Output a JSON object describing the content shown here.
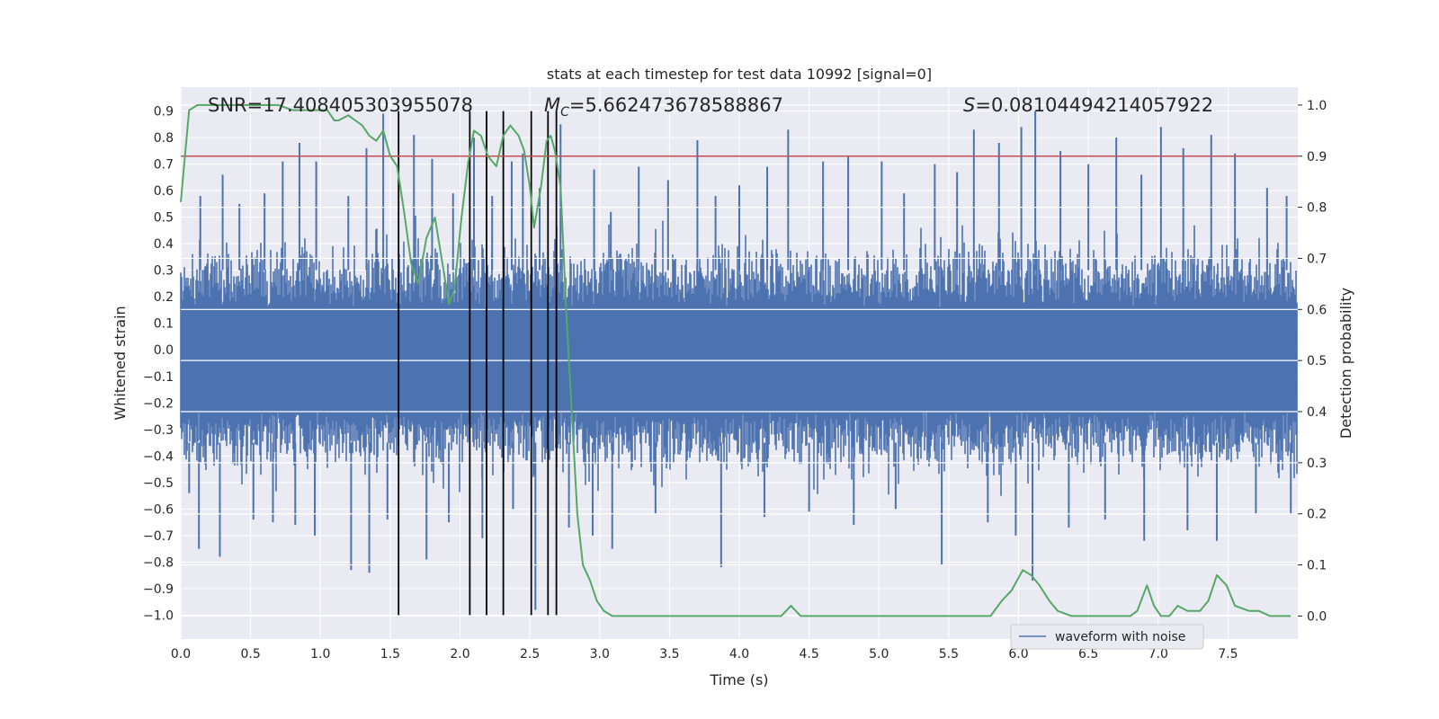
{
  "chart_data": {
    "type": "line",
    "title": "stats at each timestep for test data 10992 [signal=0]",
    "xlabel": "Time (s)",
    "ylabel_left": "Whitened strain",
    "ylabel_right": "Detection probability",
    "xlim": [
      0,
      8
    ],
    "ylim_left": [
      -1.09,
      0.99
    ],
    "ylim_right": [
      -0.045,
      1.035
    ],
    "x_ticks": [
      "0.0",
      "0.5",
      "1.0",
      "1.5",
      "2.0",
      "2.5",
      "3.0",
      "3.5",
      "4.0",
      "4.5",
      "5.0",
      "5.5",
      "6.0",
      "6.5",
      "7.0",
      "7.5"
    ],
    "y_ticks_left": [
      "−1.0",
      "−0.9",
      "−0.8",
      "−0.7",
      "−0.6",
      "−0.5",
      "−0.4",
      "−0.3",
      "−0.2",
      "−0.1",
      "0.0",
      "0.1",
      "0.2",
      "0.3",
      "0.4",
      "0.5",
      "0.6",
      "0.7",
      "0.8",
      "0.9"
    ],
    "y_ticks_right": [
      "0.0",
      "0.1",
      "0.2",
      "0.3",
      "0.4",
      "0.5",
      "0.6",
      "0.7",
      "0.8",
      "0.9",
      "1.0"
    ],
    "annotations": {
      "snr": "SNR=17.408405303955078",
      "mc_symbol": "M",
      "mc_subscript": "C",
      "mc_value": "=5.662473678588867",
      "s_symbol": "S",
      "s_value": "=0.08104494214057922"
    },
    "threshold": {
      "value": 0.9,
      "axis": "right",
      "color": "#c44e52"
    },
    "vertical_markers": {
      "x": [
        1.56,
        2.07,
        2.19,
        2.31,
        2.51,
        2.63,
        2.69
      ],
      "y_range": [
        -1.0,
        0.9
      ],
      "color": "#000000"
    },
    "waveform": {
      "name": "waveform with noise",
      "color": "#4c72b0",
      "band_typical": [
        -0.43,
        0.36
      ],
      "peaks": [
        {
          "x": 0.14,
          "y": 0.58
        },
        {
          "x": 0.3,
          "y": 0.66
        },
        {
          "x": 0.42,
          "y": 0.55
        },
        {
          "x": 0.6,
          "y": 0.59
        },
        {
          "x": 0.73,
          "y": 0.71
        },
        {
          "x": 0.85,
          "y": 0.78
        },
        {
          "x": 0.97,
          "y": 0.71
        },
        {
          "x": 1.2,
          "y": 0.58
        },
        {
          "x": 1.33,
          "y": 0.76
        },
        {
          "x": 1.45,
          "y": 0.89
        },
        {
          "x": 1.67,
          "y": 0.81
        },
        {
          "x": 1.8,
          "y": 0.72
        },
        {
          "x": 1.95,
          "y": 0.59
        },
        {
          "x": 2.1,
          "y": 0.8
        },
        {
          "x": 2.23,
          "y": 0.58
        },
        {
          "x": 2.37,
          "y": 0.71
        },
        {
          "x": 2.45,
          "y": 0.74
        },
        {
          "x": 2.57,
          "y": 0.61
        },
        {
          "x": 2.72,
          "y": 0.85
        },
        {
          "x": 2.96,
          "y": 0.68
        },
        {
          "x": 3.08,
          "y": 0.52
        },
        {
          "x": 3.28,
          "y": 0.69
        },
        {
          "x": 3.49,
          "y": 0.64
        },
        {
          "x": 3.7,
          "y": 0.79
        },
        {
          "x": 3.83,
          "y": 0.58
        },
        {
          "x": 4.0,
          "y": 0.62
        },
        {
          "x": 4.2,
          "y": 0.69
        },
        {
          "x": 4.35,
          "y": 0.83
        },
        {
          "x": 4.6,
          "y": 0.71
        },
        {
          "x": 4.78,
          "y": 0.73
        },
        {
          "x": 5.02,
          "y": 0.71
        },
        {
          "x": 5.18,
          "y": 0.59
        },
        {
          "x": 5.4,
          "y": 0.7
        },
        {
          "x": 5.56,
          "y": 0.67
        },
        {
          "x": 5.68,
          "y": 0.83
        },
        {
          "x": 5.86,
          "y": 0.78
        },
        {
          "x": 6.02,
          "y": 0.84
        },
        {
          "x": 6.12,
          "y": 0.9
        },
        {
          "x": 6.3,
          "y": 0.75
        },
        {
          "x": 6.5,
          "y": 0.7
        },
        {
          "x": 6.7,
          "y": 0.8
        },
        {
          "x": 6.88,
          "y": 0.66
        },
        {
          "x": 7.02,
          "y": 0.84
        },
        {
          "x": 7.18,
          "y": 0.76
        },
        {
          "x": 7.38,
          "y": 0.81
        },
        {
          "x": 7.55,
          "y": 0.74
        },
        {
          "x": 7.78,
          "y": 0.61
        },
        {
          "x": 7.92,
          "y": 0.58
        }
      ],
      "troughs": [
        {
          "x": 0.06,
          "y": -0.54
        },
        {
          "x": 0.13,
          "y": -0.75
        },
        {
          "x": 0.28,
          "y": -0.78
        },
        {
          "x": 0.52,
          "y": -0.64
        },
        {
          "x": 0.66,
          "y": -0.65
        },
        {
          "x": 0.82,
          "y": -0.66
        },
        {
          "x": 0.96,
          "y": -0.7
        },
        {
          "x": 1.22,
          "y": -0.83
        },
        {
          "x": 1.35,
          "y": -0.84
        },
        {
          "x": 1.48,
          "y": -0.64
        },
        {
          "x": 1.76,
          "y": -0.79
        },
        {
          "x": 1.92,
          "y": -0.65
        },
        {
          "x": 2.16,
          "y": -0.71
        },
        {
          "x": 2.38,
          "y": -0.6
        },
        {
          "x": 2.54,
          "y": -0.98
        },
        {
          "x": 2.78,
          "y": -0.67
        },
        {
          "x": 2.95,
          "y": -0.7
        },
        {
          "x": 3.09,
          "y": -0.75
        },
        {
          "x": 3.4,
          "y": -0.62
        },
        {
          "x": 3.87,
          "y": -0.82
        },
        {
          "x": 4.18,
          "y": -0.63
        },
        {
          "x": 4.5,
          "y": -0.61
        },
        {
          "x": 4.82,
          "y": -0.66
        },
        {
          "x": 5.12,
          "y": -0.6
        },
        {
          "x": 5.45,
          "y": -0.81
        },
        {
          "x": 5.78,
          "y": -0.65
        },
        {
          "x": 5.98,
          "y": -0.7
        },
        {
          "x": 6.1,
          "y": -0.87
        },
        {
          "x": 6.36,
          "y": -0.67
        },
        {
          "x": 6.62,
          "y": -0.64
        },
        {
          "x": 6.9,
          "y": -0.72
        },
        {
          "x": 7.21,
          "y": -0.68
        },
        {
          "x": 7.42,
          "y": -0.72
        },
        {
          "x": 7.7,
          "y": -0.62
        },
        {
          "x": 7.95,
          "y": -0.62
        }
      ]
    },
    "detection_probability": {
      "color": "#55a868",
      "axis": "right",
      "x": [
        0.0,
        0.06,
        0.12,
        0.2,
        0.3,
        0.4,
        0.5,
        0.6,
        0.7,
        0.8,
        0.85,
        0.9,
        0.95,
        1.0,
        1.05,
        1.1,
        1.13,
        1.2,
        1.25,
        1.3,
        1.35,
        1.4,
        1.45,
        1.5,
        1.55,
        1.6,
        1.65,
        1.7,
        1.76,
        1.82,
        1.88,
        1.92,
        1.96,
        2.01,
        2.06,
        2.1,
        2.15,
        2.2,
        2.26,
        2.31,
        2.36,
        2.42,
        2.46,
        2.5,
        2.53,
        2.58,
        2.62,
        2.65,
        2.68,
        2.72,
        2.76,
        2.8,
        2.84,
        2.88,
        2.93,
        2.98,
        3.03,
        3.09,
        3.2,
        3.4,
        3.5,
        3.6,
        3.8,
        3.9,
        4.0,
        4.1,
        4.2,
        4.3,
        4.37,
        4.44,
        4.6,
        4.8,
        5.0,
        5.5,
        5.8,
        5.88,
        5.95,
        6.03,
        6.09,
        6.15,
        6.22,
        6.28,
        6.38,
        6.5,
        6.8,
        6.85,
        6.92,
        6.97,
        7.02,
        7.08,
        7.14,
        7.21,
        7.3,
        7.36,
        7.42,
        7.49,
        7.55,
        7.65,
        7.72,
        7.8,
        7.86,
        7.95
      ],
      "y": [
        0.81,
        0.99,
        1.0,
        1.0,
        1.0,
        1.0,
        1.0,
        1.0,
        1.0,
        0.99,
        0.99,
        0.99,
        0.99,
        0.99,
        0.99,
        0.97,
        0.97,
        0.98,
        0.97,
        0.96,
        0.94,
        0.93,
        0.95,
        0.9,
        0.88,
        0.79,
        0.69,
        0.65,
        0.74,
        0.78,
        0.68,
        0.61,
        0.64,
        0.78,
        0.89,
        0.95,
        0.94,
        0.9,
        0.88,
        0.94,
        0.96,
        0.94,
        0.91,
        0.84,
        0.76,
        0.84,
        0.93,
        0.94,
        0.91,
        0.84,
        0.6,
        0.4,
        0.2,
        0.1,
        0.07,
        0.03,
        0.01,
        0.0,
        0.0,
        0.0,
        0.0,
        0.0,
        0.0,
        0.0,
        0.0,
        0.0,
        0.0,
        0.0,
        0.02,
        0.0,
        0.0,
        0.0,
        0.0,
        0.0,
        0.0,
        0.03,
        0.05,
        0.09,
        0.08,
        0.06,
        0.03,
        0.01,
        0.0,
        0.0,
        0.0,
        0.01,
        0.06,
        0.02,
        0.0,
        0.0,
        0.02,
        0.01,
        0.01,
        0.03,
        0.08,
        0.06,
        0.02,
        0.01,
        0.01,
        0.0,
        0.0,
        0.0
      ]
    },
    "legend": {
      "label": "waveform with noise",
      "placement": "lower-right"
    },
    "grid": true
  }
}
